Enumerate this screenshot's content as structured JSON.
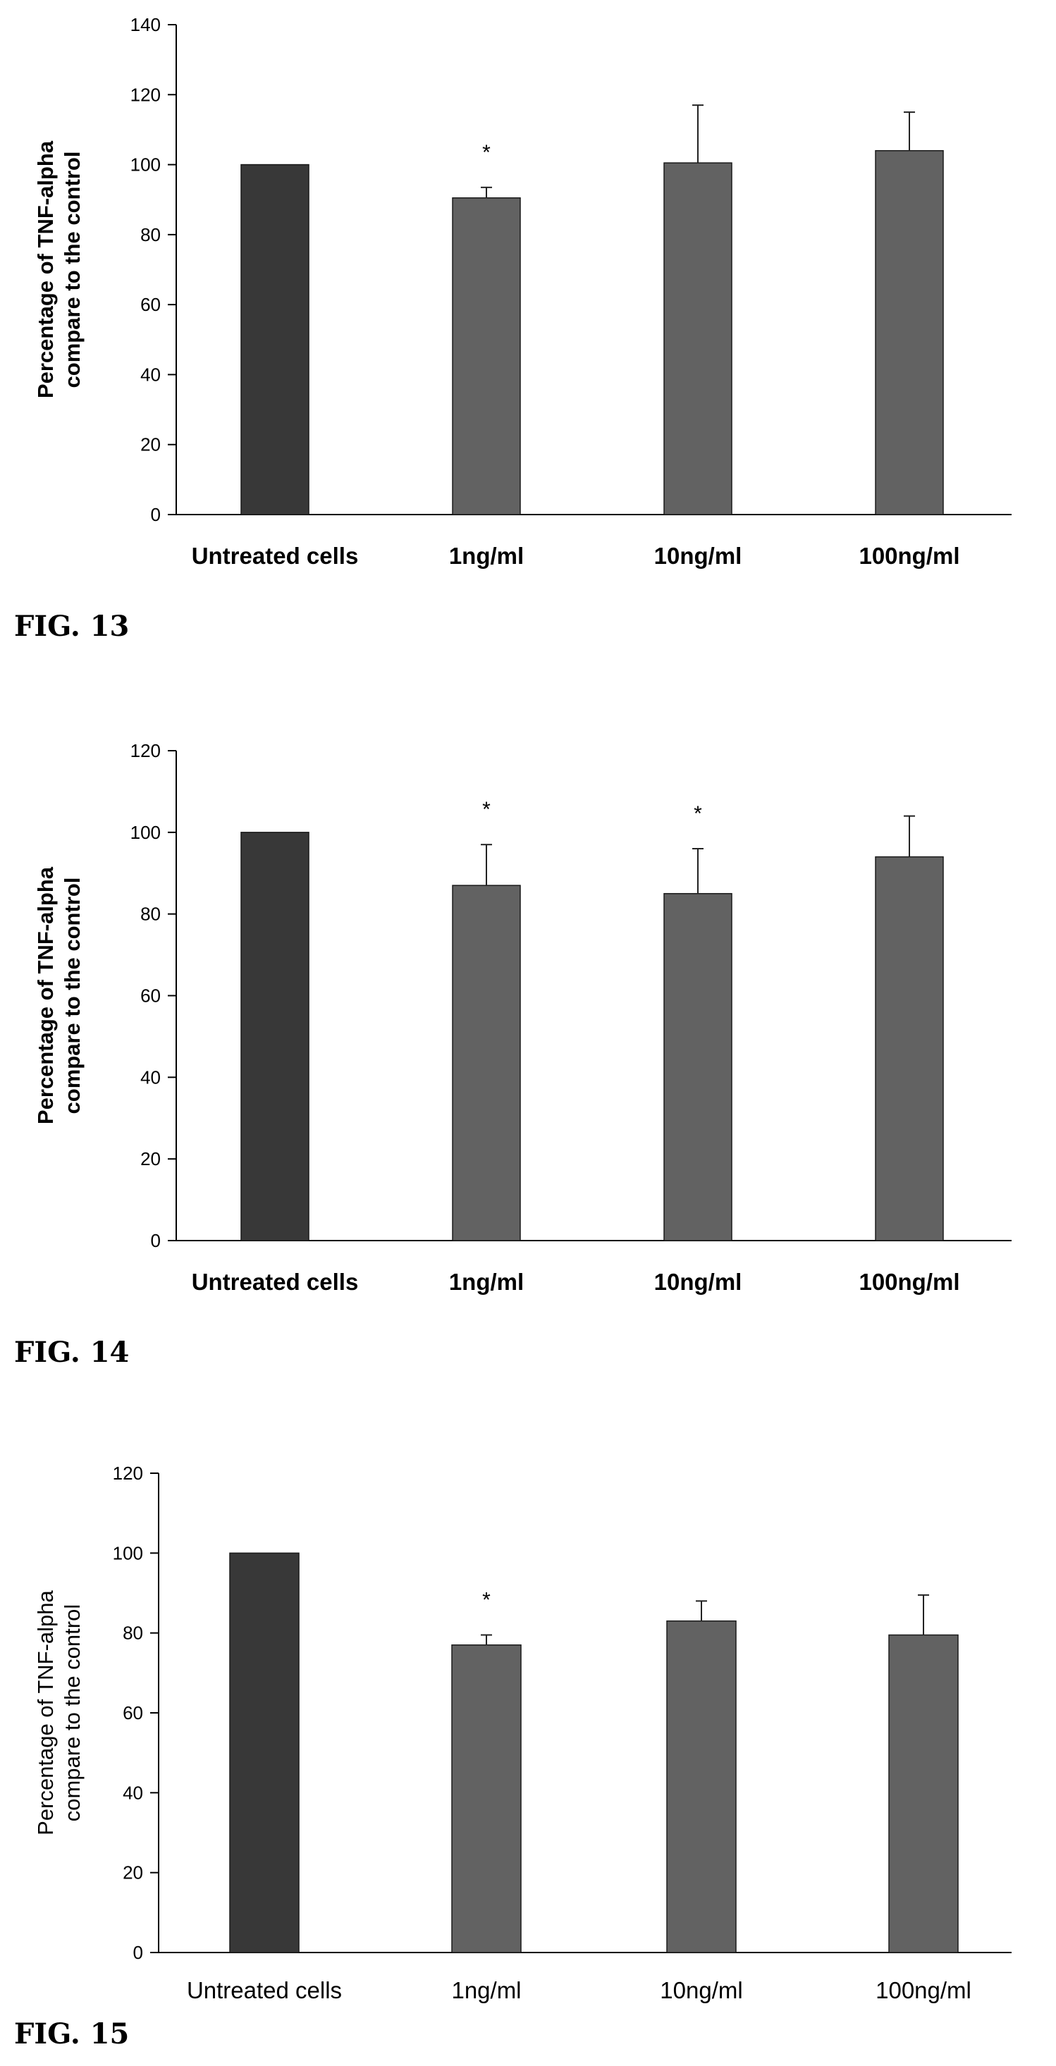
{
  "figures": [
    {
      "label": "FIG. 13"
    },
    {
      "label": "FIG. 14"
    },
    {
      "label": "FIG. 15"
    }
  ],
  "chart_data": [
    {
      "type": "bar",
      "ylabel_line1": "Percentage of TNF-alpha",
      "ylabel_line2": "compare to the control",
      "categories": [
        "Untreated cells",
        "1ng/ml",
        "10ng/ml",
        "100ng/ml"
      ],
      "values": [
        100,
        90.5,
        100.5,
        104
      ],
      "error": [
        0,
        3,
        16.5,
        11
      ],
      "significance": [
        "",
        "*",
        "",
        ""
      ],
      "ylim": [
        0,
        140
      ],
      "yticks": [
        0,
        20,
        40,
        60,
        80,
        100,
        120,
        140
      ],
      "grid": false,
      "colors": {
        "control": "#383838",
        "treated": "#626262"
      }
    },
    {
      "type": "bar",
      "ylabel_line1": "Percentage of TNF-alpha",
      "ylabel_line2": "compare to the control",
      "categories": [
        "Untreated cells",
        "1ng/ml",
        "10ng/ml",
        "100ng/ml"
      ],
      "values": [
        100,
        87,
        85,
        94
      ],
      "error": [
        0,
        10,
        11,
        10
      ],
      "significance": [
        "",
        "*",
        "*",
        ""
      ],
      "ylim": [
        0,
        120
      ],
      "yticks": [
        0,
        20,
        40,
        60,
        80,
        100,
        120
      ],
      "grid": false,
      "colors": {
        "control": "#383838",
        "treated": "#626262"
      }
    },
    {
      "type": "bar",
      "ylabel_line1": "Percentage of TNF-alpha",
      "ylabel_line2": "compare to the control",
      "categories": [
        "Untreated cells",
        "1ng/ml",
        "10ng/ml",
        "100ng/ml"
      ],
      "values": [
        100,
        77,
        83,
        79.5
      ],
      "error": [
        0,
        2.5,
        5,
        10
      ],
      "significance": [
        "",
        "*",
        "",
        ""
      ],
      "ylim": [
        0,
        120
      ],
      "yticks": [
        0,
        20,
        40,
        60,
        80,
        100,
        120
      ],
      "grid": false,
      "colors": {
        "control": "#383838",
        "treated": "#626262"
      }
    }
  ]
}
